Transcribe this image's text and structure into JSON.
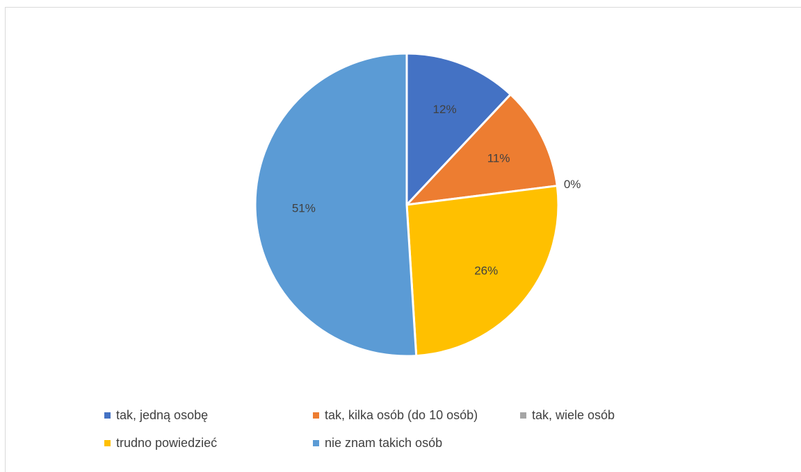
{
  "chart_data": {
    "type": "pie",
    "title": "",
    "start_angle_deg": 0,
    "direction": "clockwise",
    "legend_position": "bottom",
    "slices": [
      {
        "label": "tak, jedną osobę",
        "value": 12,
        "data_label": "12%",
        "color": "#4472C4"
      },
      {
        "label": "tak, kilka osób (do 10 osób)",
        "value": 11,
        "data_label": "11%",
        "color": "#ED7D31"
      },
      {
        "label": "tak, wiele osób",
        "value": 0,
        "data_label": "0%",
        "color": "#A5A5A5"
      },
      {
        "label": "trudno powiedzieć",
        "value": 26,
        "data_label": "26%",
        "color": "#FFC000"
      },
      {
        "label": "nie znam takich osób",
        "value": 51,
        "data_label": "51%",
        "color": "#5B9BD5"
      }
    ]
  }
}
